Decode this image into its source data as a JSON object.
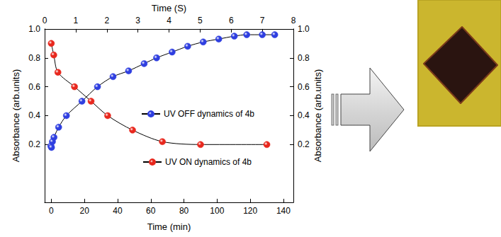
{
  "chart_data": {
    "type": "line",
    "x_label": "Time (min)",
    "x2_label": "Time (S)",
    "y_label": "Absorbance (arb.units)",
    "y2_label": "Absorbance (arb.units)",
    "xlim": [
      -4,
      146
    ],
    "xticks": [
      0,
      20,
      40,
      60,
      80,
      100,
      120,
      140
    ],
    "x2lim": [
      0,
      8
    ],
    "x2ticks": [
      0,
      1,
      2,
      3,
      4,
      5,
      6,
      7,
      8
    ],
    "ylim": [
      -0.2,
      1.0
    ],
    "yticks": [
      0.2,
      0.4,
      0.6,
      0.8,
      {
        "value": 1,
        "label": "1.0"
      }
    ],
    "y2lim": [
      -0.2,
      1.0
    ],
    "y2ticks": [
      0.2,
      0.4,
      0.6,
      0.8,
      {
        "value": 1,
        "label": "1.0"
      }
    ],
    "grid": false,
    "legend": "inside",
    "series": [
      {
        "name": "UV OFF dynamics of 4b",
        "axis": "x2",
        "color": "#2f3fe0",
        "marker": "circle",
        "line_style": "solid",
        "x": [
          0.2,
          0.22,
          0.25,
          0.3,
          0.45,
          0.7,
          1.2,
          1.7,
          2.2,
          2.7,
          3.2,
          3.6,
          4.1,
          4.6,
          5.1,
          5.6,
          6.1,
          6.5,
          7.0,
          7.4
        ],
        "values": [
          0.19,
          0.18,
          0.22,
          0.25,
          0.32,
          0.4,
          0.5,
          0.6,
          0.67,
          0.71,
          0.76,
          0.8,
          0.84,
          0.88,
          0.91,
          0.93,
          0.95,
          0.96,
          0.96,
          0.96
        ]
      },
      {
        "name": "UV ON dynamics of 4b",
        "axis": "x",
        "color": "#e8281e",
        "marker": "circle",
        "line_style": "solid",
        "x": [
          0,
          1.5,
          4,
          14,
          24,
          34,
          49,
          67,
          90,
          130
        ],
        "values": [
          0.9,
          0.82,
          0.7,
          0.6,
          0.5,
          0.4,
          0.3,
          0.22,
          0.2,
          0.2
        ]
      }
    ]
  }
}
